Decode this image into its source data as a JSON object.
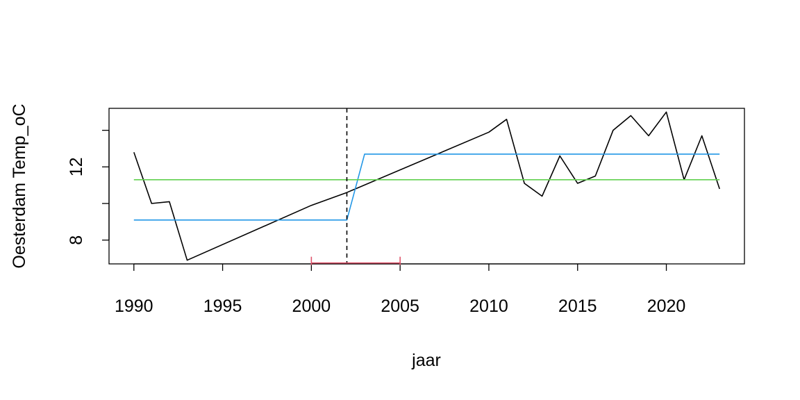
{
  "chart_data": {
    "type": "line",
    "xlabel": "jaar",
    "ylabel": "Oesterdam Temp_oC",
    "xlim": [
      1988.6,
      2024.4
    ],
    "ylim": [
      6.7,
      15.2
    ],
    "x_ticks": [
      1990,
      1995,
      2000,
      2005,
      2010,
      2015,
      2020
    ],
    "y_ticks": [
      8,
      10,
      12,
      14
    ],
    "y_tick_labels": [
      {
        "value": 8,
        "label": "8"
      },
      {
        "value": 12,
        "label": "12"
      }
    ],
    "grid": false,
    "legend": "none",
    "series": [
      {
        "color": "#000000",
        "points": [
          [
            1990,
            12.8
          ],
          [
            1991,
            10.0
          ],
          [
            1992,
            10.1
          ],
          [
            1993,
            6.9
          ],
          [
            2000,
            9.9
          ],
          [
            2002,
            10.6
          ],
          [
            2010,
            13.9
          ],
          [
            2011,
            14.6
          ],
          [
            2012,
            11.1
          ],
          [
            2013,
            10.4
          ],
          [
            2014,
            12.6
          ],
          [
            2015,
            11.1
          ],
          [
            2016,
            11.5
          ],
          [
            2017,
            14.0
          ],
          [
            2018,
            14.8
          ],
          [
            2019,
            13.7
          ],
          [
            2020,
            15.0
          ],
          [
            2021,
            11.3
          ],
          [
            2022,
            13.7
          ],
          [
            2023,
            10.8
          ]
        ]
      },
      {
        "color": "#2297E6",
        "points": [
          [
            1990,
            9.1
          ],
          [
            2002,
            9.1
          ],
          [
            2003,
            12.7
          ],
          [
            2023,
            12.7
          ]
        ]
      },
      {
        "color": "#61D04F",
        "points": [
          [
            1990,
            11.3
          ],
          [
            2023,
            11.3
          ]
        ]
      }
    ],
    "changepoint": {
      "x": 2002,
      "color": "#000000",
      "style": "dashed"
    },
    "interval": {
      "x_start": 2000,
      "x_end": 2005,
      "y": 6.75,
      "color": "#DF536B"
    }
  }
}
